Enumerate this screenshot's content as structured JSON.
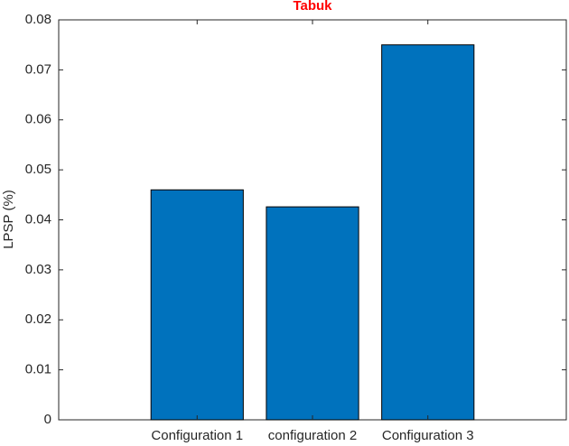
{
  "chart_data": {
    "type": "bar",
    "title": "Tabuk",
    "y_label": "LPSP (%)",
    "categories": [
      "Configuration 1",
      "configuration 2",
      "Configuration 3"
    ],
    "values": [
      0.046,
      0.0426,
      0.075
    ],
    "color": "#0072bd",
    "ylim": [
      0,
      0.08
    ],
    "yticks": [
      0,
      0.01,
      0.02,
      0.03,
      0.04,
      0.05,
      0.06,
      0.07,
      0.08
    ]
  }
}
